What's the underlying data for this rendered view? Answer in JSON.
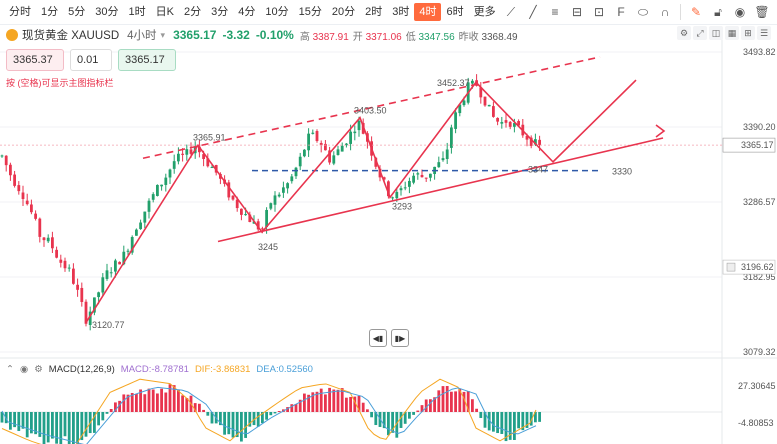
{
  "timeframes": [
    {
      "label": "分时",
      "active": false
    },
    {
      "label": "1分",
      "active": false
    },
    {
      "label": "5分",
      "active": false
    },
    {
      "label": "30分",
      "active": false
    },
    {
      "label": "1时",
      "active": false
    },
    {
      "label": "日K",
      "active": false
    },
    {
      "label": "2分",
      "active": false
    },
    {
      "label": "3分",
      "active": false
    },
    {
      "label": "4分",
      "active": false
    },
    {
      "label": "10分",
      "active": false
    },
    {
      "label": "15分",
      "active": false
    },
    {
      "label": "20分",
      "active": false
    },
    {
      "label": "2时",
      "active": false
    },
    {
      "label": "3时",
      "active": false
    },
    {
      "label": "4时",
      "active": true
    },
    {
      "label": "6时",
      "active": false
    },
    {
      "label": "更多",
      "active": false
    }
  ],
  "toolbar_icons": [
    "trendline-icon",
    "draw-line-icon",
    "text-format-icon",
    "ruler-icon",
    "tape-icon",
    "fib-icon",
    "shapes-icon",
    "magnet-icon",
    "edit-icon",
    "lock-icon",
    "eye-icon",
    "trash-icon"
  ],
  "symbol": {
    "name": "现货黄金 XAUUSD",
    "period": "4小时",
    "last": "3365.17",
    "change": "-3.32",
    "pct": "-0.10%"
  },
  "quote": {
    "high_label": "高",
    "high": "3387.91",
    "open_label": "开",
    "open": "3371.06",
    "low_label": "低",
    "low": "3347.56",
    "prev_label": "昨收",
    "prev": "3368.49"
  },
  "trade": {
    "sell": "3365.37",
    "qty": "0.01",
    "buy": "3365.17",
    "hint": "按 (空格)可显示主图指标栏"
  },
  "price_axis": [
    {
      "label": "3493.82",
      "v": 3493.82
    },
    {
      "label": "3390.20",
      "v": 3390.2
    },
    {
      "label": "3286.57",
      "v": 3286.57
    },
    {
      "label": "3182.95",
      "v": 3182.95
    },
    {
      "label": "3079.32",
      "v": 3079.32
    }
  ],
  "current_price_tag": {
    "label": "3365.17",
    "v": 3365.17
  },
  "level_3196_tag": {
    "label": "3196.62",
    "v": 3196.62
  },
  "annotations": [
    {
      "label": "3365.91"
    },
    {
      "label": "3403.50"
    },
    {
      "label": "3452.37"
    },
    {
      "label": "3245"
    },
    {
      "label": "3293"
    },
    {
      "label": "3347"
    },
    {
      "label": "3120.77"
    },
    {
      "label": "3330"
    }
  ],
  "macd": {
    "title": "MACD(12,26,9)",
    "macd_label": "MACD:",
    "macd": "-8.78781",
    "dif_label": "DIF:",
    "dif": "-3.86831",
    "dea_label": "DEA:",
    "dea": "0.52560",
    "axis_top": "27.30645",
    "axis_bottom": "-4.80853"
  },
  "colors": {
    "up": "#22a06b",
    "down": "#e8344e",
    "accent": "#ff6a3d",
    "dif": "#f5a623",
    "dea": "#4a9fd8"
  }
}
